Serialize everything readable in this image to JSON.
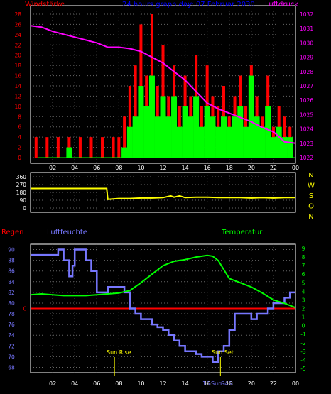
{
  "chart_data": [
    {
      "type": "bar",
      "title": "24 hours graph day: 07 Februar 2030",
      "left_axis_title": "Windstärke",
      "right_axis_title": "Luftdruck",
      "left_ticks": [
        "0",
        "2",
        "4",
        "6",
        "8",
        "10",
        "12",
        "14",
        "16",
        "18",
        "20",
        "22",
        "24",
        "26",
        "28"
      ],
      "right_ticks": [
        "1032",
        "1031",
        "1030",
        "1029",
        "1028",
        "1027",
        "1026",
        "1025",
        "1024",
        "1023",
        "1022"
      ],
      "x_ticks": [
        "02",
        "04",
        "06",
        "08",
        "10",
        "12",
        "14",
        "16",
        "18",
        "20",
        "22",
        "00"
      ],
      "ylim_left": [
        0,
        28
      ],
      "ylim_right": [
        1022,
        1032
      ],
      "xlim": [
        0,
        24
      ],
      "grid": true,
      "series": [
        {
          "name": "gust",
          "color": "#ff0000",
          "x": [
            0.5,
            1.0,
            1.5,
            2.0,
            2.5,
            3.0,
            3.5,
            4.0,
            4.5,
            5.0,
            5.5,
            6.0,
            6.5,
            7.0,
            7.5,
            8.0,
            8.5,
            9.0,
            9.5,
            10.0,
            10.5,
            11.0,
            11.5,
            12.0,
            12.5,
            13.0,
            13.5,
            14.0,
            14.5,
            15.0,
            15.5,
            16.0,
            16.5,
            17.0,
            17.5,
            18.0,
            18.5,
            19.0,
            19.5,
            20.0,
            20.5,
            21.0,
            21.5,
            22.0,
            22.5,
            23.0,
            23.5
          ],
          "values": [
            4,
            0,
            4,
            0,
            4,
            0,
            4,
            0,
            4,
            0,
            4,
            0,
            4,
            0,
            4,
            4,
            8,
            14,
            18,
            26,
            16,
            28,
            14,
            22,
            12,
            18,
            10,
            16,
            12,
            20,
            10,
            18,
            12,
            10,
            14,
            8,
            12,
            16,
            10,
            18,
            12,
            8,
            16,
            6,
            10,
            8,
            6
          ]
        },
        {
          "name": "wind",
          "color": "#00ff00",
          "x": [
            0.5,
            1.0,
            1.5,
            2.0,
            2.5,
            3.0,
            3.5,
            4.0,
            4.5,
            5.0,
            5.5,
            6.0,
            6.5,
            7.0,
            7.5,
            8.0,
            8.5,
            9.0,
            9.5,
            10.0,
            10.5,
            11.0,
            11.5,
            12.0,
            12.5,
            13.0,
            13.5,
            14.0,
            14.5,
            15.0,
            15.5,
            16.0,
            16.5,
            17.0,
            17.5,
            18.0,
            18.5,
            19.0,
            19.5,
            20.0,
            20.5,
            21.0,
            21.5,
            22.0,
            22.5,
            23.0,
            23.5
          ],
          "values": [
            0,
            0,
            0,
            0,
            0,
            0,
            2,
            0,
            0,
            0,
            0,
            0,
            0,
            0,
            0,
            0,
            2,
            6,
            8,
            14,
            10,
            16,
            8,
            12,
            8,
            12,
            6,
            10,
            8,
            12,
            6,
            10,
            8,
            6,
            8,
            6,
            8,
            10,
            6,
            16,
            8,
            6,
            10,
            4,
            6,
            4,
            4
          ]
        },
        {
          "name": "pressure",
          "color": "#ff00ff",
          "axis": "right",
          "x": [
            0,
            1,
            2,
            3,
            4,
            5,
            6,
            7,
            8,
            9,
            10,
            11,
            12,
            13,
            14,
            15,
            16,
            17,
            18,
            19,
            20,
            21,
            22,
            23,
            24
          ],
          "values": [
            1031.2,
            1031.1,
            1030.8,
            1030.6,
            1030.4,
            1030.2,
            1030.0,
            1029.7,
            1029.7,
            1029.6,
            1029.4,
            1029.0,
            1028.6,
            1028.0,
            1027.4,
            1026.6,
            1025.8,
            1025.4,
            1025.1,
            1024.8,
            1024.5,
            1024.1,
            1023.8,
            1023.1,
            1023.0
          ]
        }
      ]
    },
    {
      "type": "line",
      "title": "",
      "left_ticks": [
        "0",
        "90",
        "180",
        "270",
        "360"
      ],
      "right_labels": [
        "N",
        "W",
        "S",
        "O",
        "N"
      ],
      "ylim": [
        0,
        360
      ],
      "xlim": [
        0,
        24
      ],
      "series": [
        {
          "name": "direction",
          "color": "#ffff00",
          "x": [
            0,
            1,
            2,
            3,
            4,
            5,
            6,
            6.9,
            7,
            8,
            9,
            10,
            11,
            12,
            12.7,
            13,
            13.5,
            14,
            15,
            16,
            17,
            18,
            19,
            20,
            21,
            22,
            23,
            24
          ],
          "values": [
            225,
            225,
            225,
            225,
            225,
            225,
            225,
            225,
            100,
            110,
            110,
            115,
            115,
            120,
            140,
            125,
            140,
            120,
            125,
            125,
            120,
            120,
            120,
            115,
            120,
            115,
            120,
            120
          ]
        }
      ]
    },
    {
      "type": "line",
      "left_axis_title": "Regen",
      "humidity_title": "Luftfeuchte",
      "temperature_title": "Temperatur",
      "humidity_ticks": [
        "68",
        "70",
        "72",
        "74",
        "76",
        "78",
        "80",
        "82",
        "84",
        "86",
        "88",
        "90"
      ],
      "rain_tick": "0",
      "temperature_ticks": [
        "-5",
        "-4",
        "-3",
        "-2",
        "-1",
        "0",
        "1",
        "2",
        "3",
        "4",
        "5",
        "6",
        "7",
        "8",
        "9"
      ],
      "x_ticks": [
        "02",
        "04",
        "06",
        "08",
        "10",
        "12",
        "14",
        "16",
        "18",
        "20",
        "22",
        "00"
      ],
      "ylim_humidity": [
        67,
        91
      ],
      "ylim_temperature": [
        -5.5,
        9.5
      ],
      "xlim": [
        0,
        24
      ],
      "annotations": [
        {
          "text": "Sun Rise",
          "x": 7.6
        },
        {
          "text": "Sun Set",
          "x": 17.2
        }
      ],
      "sun_marker_labels": [
        "16",
        "Sun",
        "S46"
      ],
      "series": [
        {
          "name": "humidity",
          "color": "#7777ff",
          "x": [
            0,
            1,
            2,
            2.5,
            3,
            3.5,
            3.8,
            4,
            4.5,
            5,
            5.5,
            6,
            6.5,
            7,
            7.5,
            8,
            8.5,
            9,
            9.5,
            10,
            10.5,
            11,
            11.5,
            12,
            12.5,
            13,
            13.5,
            14,
            14.5,
            15,
            15.5,
            16,
            16.5,
            17,
            17.5,
            18,
            18.5,
            19,
            19.5,
            20,
            20.5,
            21,
            21.5,
            22,
            22.5,
            23,
            23.5,
            24
          ],
          "values": [
            89,
            89,
            89,
            90,
            88,
            85,
            87,
            90,
            90,
            88,
            86,
            82,
            82,
            83,
            83,
            83,
            82,
            79,
            78,
            77,
            77,
            76,
            75.5,
            75,
            74,
            73,
            72,
            71,
            71,
            70.5,
            70,
            70,
            69,
            71,
            72,
            75,
            78,
            78,
            78,
            77,
            78,
            78,
            79,
            80,
            80,
            81,
            82,
            82
          ]
        },
        {
          "name": "temperature",
          "color": "#00ff00",
          "x": [
            0,
            1,
            2,
            3,
            4,
            5,
            6,
            7,
            8,
            9,
            10,
            11,
            12,
            13,
            14,
            15,
            16,
            16.5,
            17,
            18,
            19,
            20,
            21,
            22,
            23,
            24
          ],
          "values": [
            3.6,
            3.7,
            3.6,
            3.5,
            3.5,
            3.5,
            3.6,
            3.7,
            3.8,
            4.1,
            5.0,
            6.0,
            7.0,
            7.5,
            7.7,
            8.0,
            8.2,
            8.1,
            7.6,
            5.5,
            5.0,
            4.5,
            3.8,
            3.0,
            2.6,
            2.1
          ]
        },
        {
          "name": "rain",
          "color": "#ff0000",
          "x": [
            0,
            24
          ],
          "values": [
            0,
            0
          ]
        }
      ]
    }
  ]
}
